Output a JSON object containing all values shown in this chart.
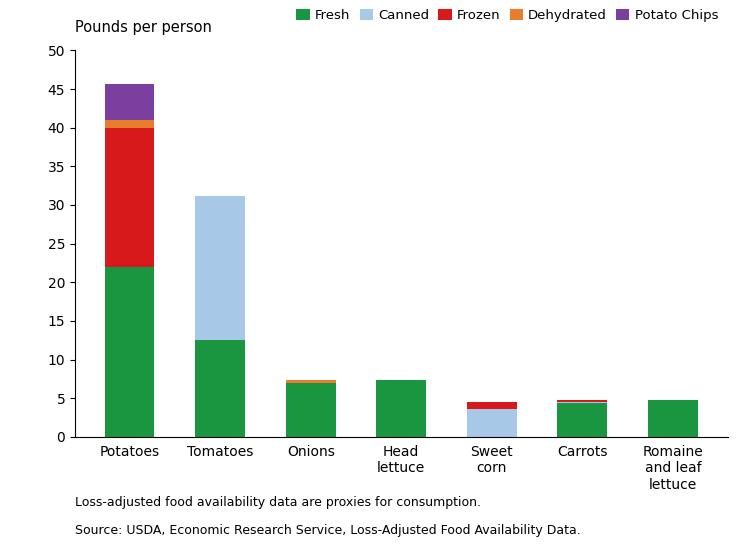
{
  "categories": [
    "Potatoes",
    "Tomatoes",
    "Onions",
    "Head\nlettuce",
    "Sweet\ncorn",
    "Carrots",
    "Romaine\nand leaf\nlettuce"
  ],
  "fresh": [
    22.0,
    12.5,
    7.0,
    7.3,
    0.0,
    4.4,
    4.8
  ],
  "canned": [
    0.0,
    18.7,
    0.0,
    0.0,
    3.6,
    0.15,
    0.0
  ],
  "frozen": [
    18.0,
    0.0,
    0.0,
    0.0,
    0.9,
    0.25,
    0.0
  ],
  "dehydrated": [
    1.0,
    0.0,
    0.3,
    0.0,
    0.0,
    0.0,
    0.0
  ],
  "potato_chips": [
    4.7,
    0.0,
    0.0,
    0.0,
    0.0,
    0.0,
    0.0
  ],
  "colors": {
    "fresh": "#1a9641",
    "canned": "#a8c8e8",
    "frozen": "#d7191c",
    "dehydrated": "#e87d2b",
    "potato_chips": "#7b3fa0"
  },
  "ylim": [
    0,
    50
  ],
  "yticks": [
    0,
    5,
    10,
    15,
    20,
    25,
    30,
    35,
    40,
    45,
    50
  ],
  "ylabel": "Pounds per person",
  "legend_labels": [
    "Fresh",
    "Canned",
    "Frozen",
    "Dehydrated",
    "Potato Chips"
  ],
  "footnote1": "Loss-adjusted food availability data are proxies for consumption.",
  "footnote2": "Source: USDA, Economic Research Service, Loss-Adjusted Food Availability Data.",
  "bar_width": 0.55
}
